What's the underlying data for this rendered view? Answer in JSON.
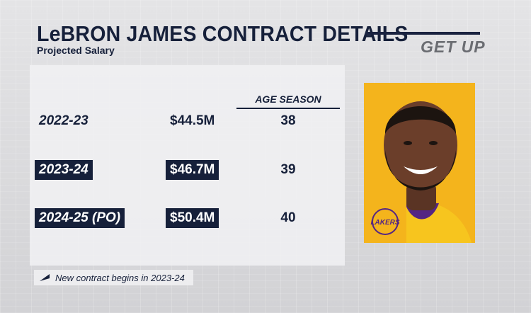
{
  "header": {
    "title": "LeBRON JAMES CONTRACT DETAILS",
    "subtitle": "Projected Salary",
    "logo": "GET UP"
  },
  "table": {
    "age_header": "AGE SEASON",
    "rows": [
      {
        "season": "2022-23",
        "salary": "$44.5M",
        "age": "38"
      },
      {
        "season": "2023-24",
        "salary": "$46.7M",
        "age": "39"
      },
      {
        "season": "2024-25 (PO)",
        "salary": "$50.4M",
        "age": "40"
      }
    ]
  },
  "photo": {
    "team_logo": "LAKERS"
  },
  "footnote": {
    "text": "New contract begins in 2023-24",
    "icon": "flag-icon"
  },
  "colors": {
    "navy": "#16203a",
    "gold": "#f4b41c",
    "lakers_purple": "#552583"
  }
}
